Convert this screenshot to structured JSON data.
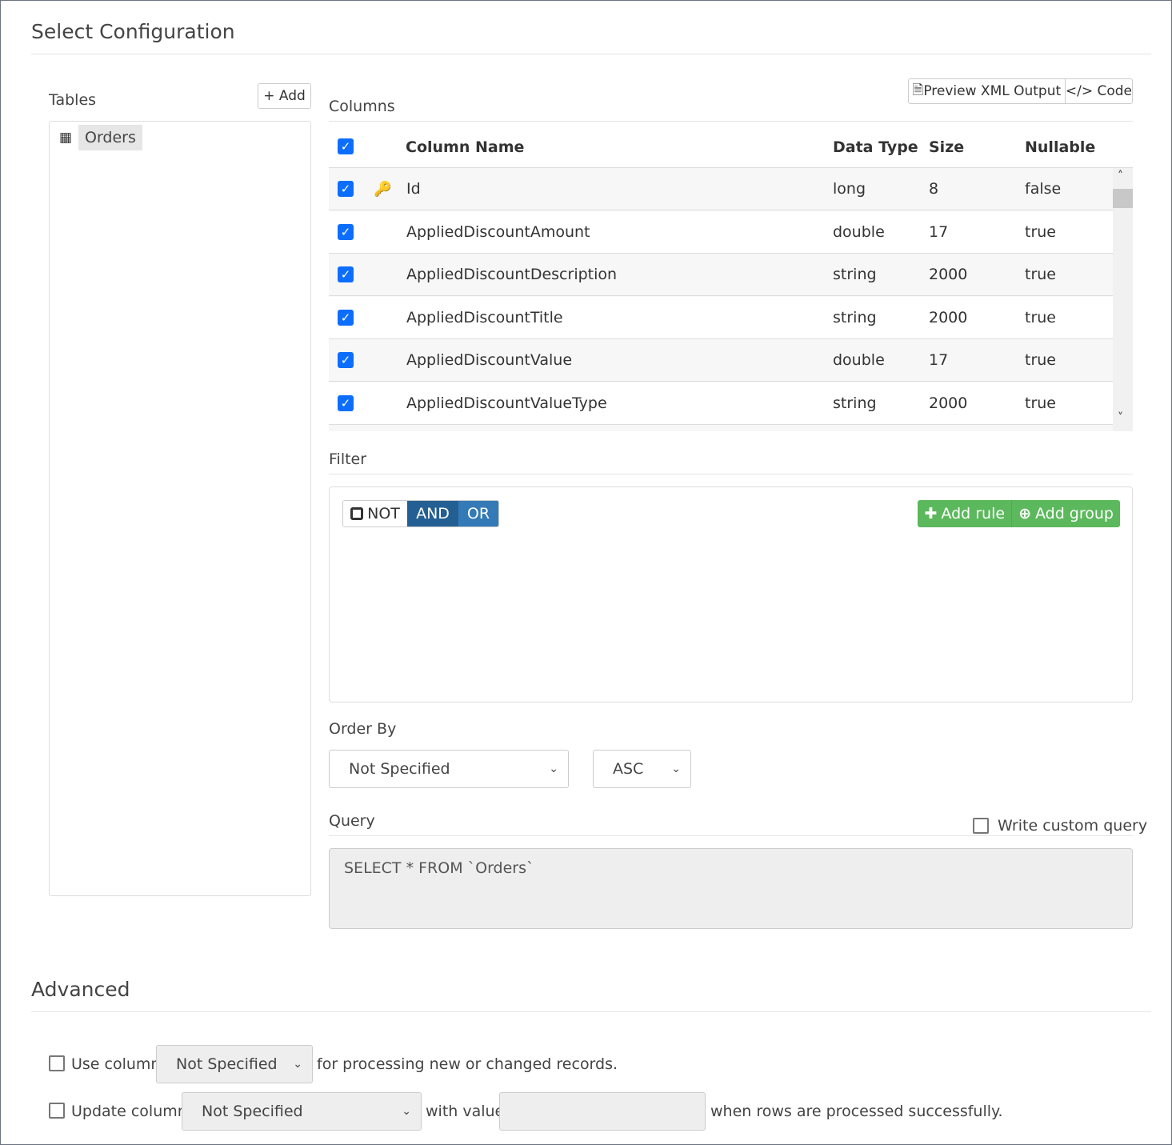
{
  "title": "Select Configuration",
  "tables": {
    "label": "Tables",
    "add": "+ Add",
    "items": [
      "Orders"
    ]
  },
  "columns": {
    "label": "Columns",
    "preview": "Preview XML Output",
    "code": "Code",
    "headers": [
      "Column Name",
      "Data Type",
      "Size",
      "Nullable"
    ],
    "rows": [
      [
        "Id",
        "long",
        "8",
        "false"
      ],
      [
        "AppliedDiscountAmount",
        "double",
        "17",
        "true"
      ],
      [
        "AppliedDiscountDescription",
        "string",
        "2000",
        "true"
      ],
      [
        "AppliedDiscountTitle",
        "string",
        "2000",
        "true"
      ],
      [
        "AppliedDiscountValue",
        "double",
        "17",
        "true"
      ],
      [
        "AppliedDiscountValueType",
        "string",
        "2000",
        "true"
      ]
    ]
  },
  "filter": {
    "label": "Filter",
    "not": "NOT",
    "and": "AND",
    "or": "OR",
    "add_rule": "Add rule",
    "add_group": "Add group"
  },
  "order": {
    "label": "Order By",
    "column": "Not Specified",
    "direction": "ASC"
  },
  "query": {
    "label": "Query",
    "custom": "Write custom query",
    "text": "SELECT * FROM `Orders`"
  },
  "advanced": {
    "title": "Advanced",
    "use_column": "Use column",
    "use_value": "Not Specified",
    "use_suffix": "for processing new or changed records.",
    "update_column": "Update column",
    "update_value": "Not Specified",
    "with_value": "with value",
    "update_suffix": "when rows are processed successfully."
  },
  "colors": {
    "accent": "#0d6efd",
    "and": "#245f94",
    "or": "#337ab7",
    "green": "#5cb85c"
  }
}
